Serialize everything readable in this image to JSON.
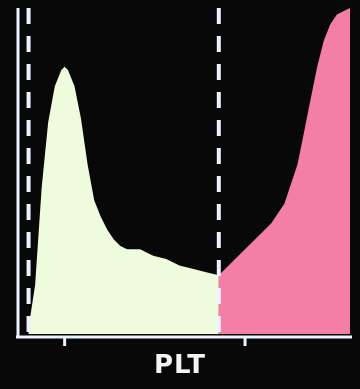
{
  "chart_data": {
    "type": "area",
    "xlabel": "PLT",
    "title": "",
    "ylabel": "",
    "grid": false,
    "colors": {
      "normal": "#eefbdc",
      "high": "#f37fa6",
      "axis": "#ecf2ff",
      "background": "#080808"
    },
    "x_range": [
      0,
      100
    ],
    "y_range": [
      0,
      100
    ],
    "discriminators": [
      2,
      60
    ],
    "x_ticks": [
      13,
      68
    ],
    "series": [
      {
        "region": "normal",
        "x": [
          2,
          4,
          6,
          8,
          10,
          12,
          13,
          14,
          16,
          18,
          20,
          22,
          24,
          26,
          28,
          30,
          32,
          34,
          36,
          40,
          44,
          48,
          52,
          56,
          60
        ],
        "y": [
          2,
          15,
          45,
          65,
          76,
          81,
          82,
          81,
          76,
          66,
          52,
          41,
          36,
          32,
          29,
          27,
          26,
          26,
          26,
          24,
          23,
          21,
          20,
          19,
          18
        ]
      },
      {
        "region": "high",
        "x": [
          60,
          64,
          68,
          72,
          76,
          80,
          84,
          86,
          88,
          90,
          92,
          94,
          96,
          98,
          100
        ],
        "y": [
          18,
          22,
          26,
          30,
          34,
          40,
          52,
          62,
          72,
          82,
          90,
          95,
          98,
          99,
          100
        ]
      }
    ]
  }
}
